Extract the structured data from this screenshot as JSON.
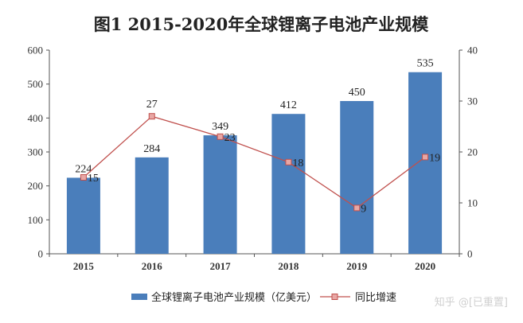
{
  "chart_data": {
    "type": "bar",
    "title": "图1 2015-2020年全球锂离子电池产业规模",
    "categories": [
      "2015",
      "2016",
      "2017",
      "2018",
      "2019",
      "2020"
    ],
    "series": [
      {
        "name": "全球锂离子电池产业规模（亿美元）",
        "type": "bar",
        "axis": "left",
        "values": [
          224,
          284,
          349,
          412,
          450,
          535
        ],
        "color": "#4a7ebb"
      },
      {
        "name": "同比增速",
        "type": "line",
        "axis": "right",
        "values": [
          15,
          27,
          23,
          18,
          9,
          19
        ],
        "color": "#c0504d"
      }
    ],
    "ylim": [
      0,
      600
    ],
    "yticks": [
      "0",
      "100",
      "200",
      "300",
      "400",
      "500",
      "600"
    ],
    "y2lim": [
      0,
      40
    ],
    "y2ticks": [
      "0",
      "10",
      "20",
      "30",
      "40"
    ],
    "legend_position": "bottom",
    "grid": false
  },
  "watermark": "知乎 @[已重置]"
}
